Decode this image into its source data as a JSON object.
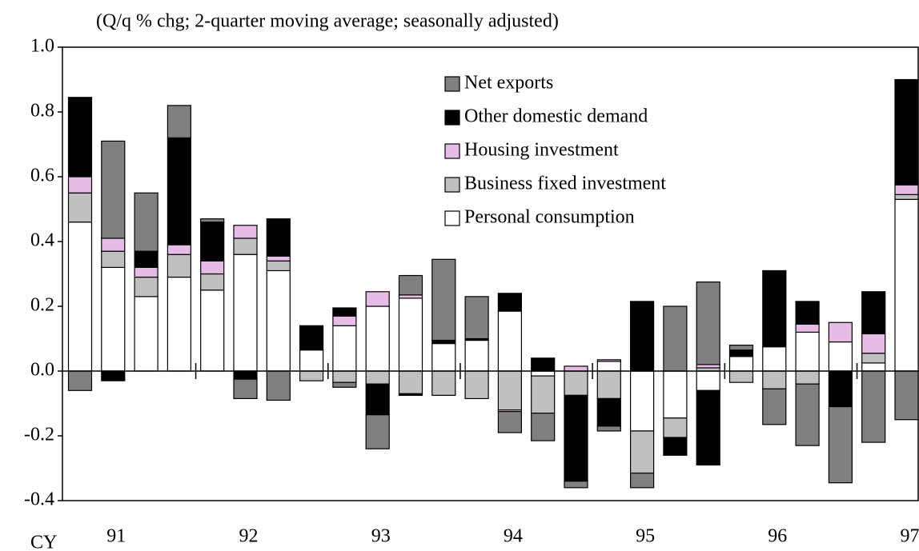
{
  "chart_data": {
    "type": "stacked_bar",
    "subtitle": "(Q/q % chg; 2-quarter moving average; seasonally adjusted)",
    "x_label": "CY",
    "categories": [
      null,
      "91",
      null,
      null,
      null,
      "92",
      null,
      null,
      null,
      "93",
      null,
      null,
      null,
      "94",
      null,
      null,
      null,
      "95",
      null,
      null,
      null,
      "96",
      null,
      null,
      null,
      "97"
    ],
    "series": [
      {
        "name": "Personal consumption",
        "color": "#ffffff",
        "values": [
          0.46,
          0.32,
          0.23,
          0.29,
          0.25,
          0.36,
          0.31,
          0.065,
          0.14,
          0.2,
          0.225,
          0.085,
          0.095,
          0.185,
          -0.015,
          0.0,
          0.03,
          -0.185,
          -0.145,
          -0.06,
          0.045,
          0.075,
          0.12,
          0.09,
          0.025,
          0.53
        ]
      },
      {
        "name": "Business fixed investment",
        "color": "#c0c0c0",
        "values": [
          0.09,
          0.05,
          0.06,
          0.07,
          0.05,
          0.05,
          0.03,
          -0.03,
          -0.035,
          -0.04,
          -0.07,
          -0.075,
          -0.085,
          -0.12,
          -0.115,
          -0.075,
          -0.085,
          -0.13,
          -0.06,
          0.01,
          -0.035,
          -0.055,
          -0.04,
          0.0,
          0.03,
          0.015
        ]
      },
      {
        "name": "Housing investment",
        "color": "#e6bce6",
        "values": [
          0.05,
          0.04,
          0.03,
          0.03,
          0.04,
          0.04,
          0.015,
          0.0,
          0.03,
          0.045,
          0.01,
          0.0,
          0.0,
          -0.005,
          0.0,
          0.015,
          0.005,
          0.0,
          0.0,
          0.01,
          0.0,
          0.0,
          0.025,
          0.06,
          0.06,
          0.03
        ]
      },
      {
        "name": "Other domestic demand",
        "color": "#000000",
        "values": [
          0.245,
          -0.03,
          0.05,
          0.33,
          0.12,
          -0.025,
          0.115,
          0.075,
          0.025,
          -0.095,
          -0.005,
          0.01,
          0.005,
          0.055,
          0.04,
          -0.265,
          -0.085,
          0.215,
          -0.055,
          -0.23,
          0.02,
          0.235,
          0.07,
          -0.11,
          0.13,
          0.325
        ]
      },
      {
        "name": "Net exports",
        "color": "#808080",
        "values": [
          -0.06,
          0.3,
          0.18,
          0.1,
          0.01,
          -0.06,
          -0.09,
          0.0,
          -0.015,
          -0.105,
          0.06,
          0.25,
          0.13,
          -0.065,
          -0.085,
          -0.02,
          -0.015,
          -0.045,
          0.2,
          0.255,
          0.015,
          -0.11,
          -0.19,
          -0.235,
          -0.22,
          -0.15
        ]
      }
    ],
    "ylim": [
      -0.4,
      1.0
    ],
    "yticks": [
      -0.4,
      -0.2,
      {
        "value": 0,
        "label": "0.0"
      },
      0.2,
      0.4,
      0.6,
      0.8,
      {
        "value": 1,
        "label": "1.0"
      }
    ],
    "grid": false,
    "legend": "top-right"
  }
}
